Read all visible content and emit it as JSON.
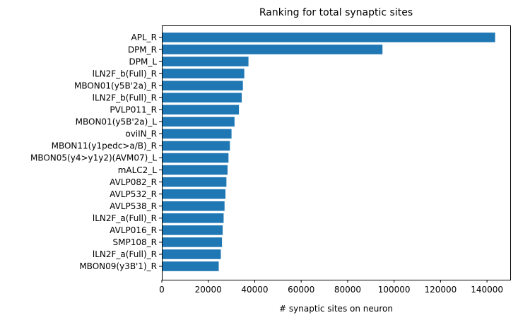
{
  "chart_data": {
    "type": "bar",
    "orientation": "horizontal",
    "title": "Ranking for total synaptic sites",
    "xlabel": "# synaptic sites on neuron",
    "ylabel": "",
    "xlim": [
      0,
      150000
    ],
    "xticks": [
      0,
      20000,
      40000,
      60000,
      80000,
      100000,
      120000,
      140000
    ],
    "xtick_labels": [
      "0",
      "20000",
      "40000",
      "60000",
      "80000",
      "100000",
      "120000",
      "140000"
    ],
    "grid": false,
    "bar_color": "#1f77b4",
    "categories": [
      "APL_R",
      "DPM_R",
      "DPM_L",
      "lLN2F_b(Full)_R",
      "MBON01(y5B'2a)_R",
      "lLN2F_b(Full)_R",
      "PVLP011_R",
      "MBON01(y5B'2a)_L",
      "oviIN_R",
      "MBON11(y1pedc>a/B)_R",
      "MBON05(y4>y1y2)(AVM07)_L",
      "mALC2_L",
      "AVLP082_R",
      "AVLP532_R",
      "AVLP538_R",
      "lLN2F_a(Full)_R",
      "AVLP016_R",
      "SMP108_R",
      "lLN2F_a(Full)_R",
      "MBON09(y3B'1)_R"
    ],
    "values": [
      143500,
      95000,
      37300,
      35500,
      34900,
      34400,
      33200,
      31300,
      30000,
      29300,
      28700,
      28300,
      27800,
      27400,
      27000,
      26600,
      26200,
      25900,
      25400,
      24500
    ]
  }
}
